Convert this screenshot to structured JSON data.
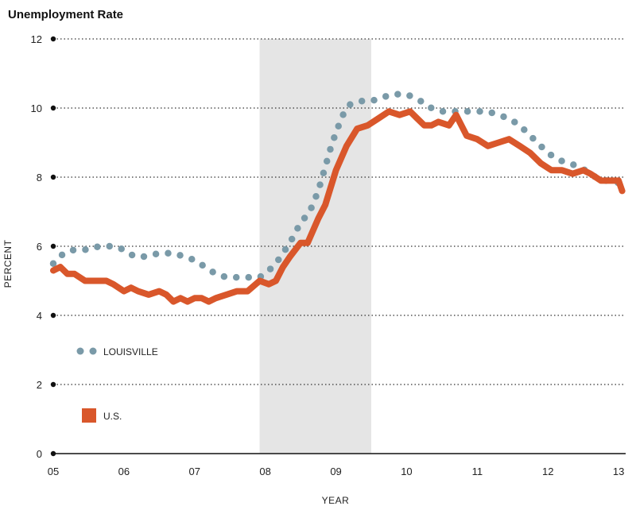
{
  "chart_data": {
    "type": "line",
    "title": "Unemployment Rate",
    "xlabel": "YEAR",
    "ylabel": "PERCENT",
    "ylim": [
      0,
      12
    ],
    "xlim": [
      2005,
      2013.1
    ],
    "yticks": [
      0,
      2,
      4,
      6,
      8,
      10,
      12
    ],
    "xticks": [
      {
        "value": 2005,
        "label": "05"
      },
      {
        "value": 2006,
        "label": "06"
      },
      {
        "value": 2007,
        "label": "07"
      },
      {
        "value": 2008,
        "label": "08"
      },
      {
        "value": 2009,
        "label": "09"
      },
      {
        "value": 2010,
        "label": "10"
      },
      {
        "value": 2011,
        "label": "11"
      },
      {
        "value": 2012,
        "label": "12"
      },
      {
        "value": 2013,
        "label": "13"
      }
    ],
    "grid": true,
    "recession_band": {
      "start": 2007.92,
      "end": 2009.5
    },
    "legend_position": "bottom-left",
    "series": [
      {
        "name": "LOUISVILLE",
        "style": "dotted",
        "color": "#7a9aa8",
        "x": [
          2005.0,
          2005.15,
          2005.3,
          2005.5,
          2005.65,
          2005.85,
          2006.0,
          2006.15,
          2006.3,
          2006.5,
          2006.7,
          2006.85,
          2007.0,
          2007.15,
          2007.3,
          2007.45,
          2007.6,
          2007.75,
          2007.92,
          2008.05,
          2008.15,
          2008.25,
          2008.35,
          2008.45,
          2008.55,
          2008.65,
          2008.75,
          2008.85,
          2008.92,
          2009.0,
          2009.1,
          2009.2,
          2009.35,
          2009.5,
          2009.65,
          2009.8,
          2010.0,
          2010.2,
          2010.35,
          2010.5,
          2010.7,
          2010.85,
          2011.0,
          2011.15,
          2011.3,
          2011.45,
          2011.6,
          2011.75,
          2011.9,
          2012.0,
          2012.15,
          2012.3,
          2012.45,
          2012.6,
          2012.75,
          2012.9,
          2013.05
        ],
        "y": [
          5.5,
          5.8,
          5.9,
          5.9,
          6.0,
          6.0,
          5.9,
          5.7,
          5.7,
          5.8,
          5.8,
          5.7,
          5.6,
          5.4,
          5.2,
          5.1,
          5.1,
          5.1,
          5.1,
          5.3,
          5.5,
          5.8,
          6.1,
          6.5,
          6.8,
          7.1,
          7.6,
          8.3,
          8.8,
          9.3,
          9.8,
          10.1,
          10.2,
          10.2,
          10.3,
          10.4,
          10.4,
          10.2,
          10.0,
          9.9,
          9.9,
          9.9,
          9.9,
          9.9,
          9.8,
          9.7,
          9.5,
          9.2,
          8.9,
          8.7,
          8.5,
          8.4,
          8.3,
          8.1,
          7.9,
          7.9,
          7.8
        ]
      },
      {
        "name": "U.S.",
        "style": "solid",
        "color": "#d9572b",
        "x": [
          2005.0,
          2005.1,
          2005.2,
          2005.3,
          2005.45,
          2005.6,
          2005.75,
          2005.85,
          2006.0,
          2006.1,
          2006.2,
          2006.35,
          2006.5,
          2006.6,
          2006.7,
          2006.8,
          2006.9,
          2007.0,
          2007.1,
          2007.2,
          2007.3,
          2007.45,
          2007.6,
          2007.75,
          2007.92,
          2008.05,
          2008.15,
          2008.25,
          2008.35,
          2008.5,
          2008.6,
          2008.75,
          2008.85,
          2009.0,
          2009.15,
          2009.3,
          2009.45,
          2009.6,
          2009.75,
          2009.9,
          2010.05,
          2010.15,
          2010.25,
          2010.35,
          2010.45,
          2010.6,
          2010.7,
          2010.85,
          2011.0,
          2011.15,
          2011.3,
          2011.45,
          2011.6,
          2011.75,
          2011.9,
          2012.05,
          2012.2,
          2012.35,
          2012.5,
          2012.6,
          2012.75,
          2012.85,
          2013.0,
          2013.05
        ],
        "y": [
          5.3,
          5.4,
          5.2,
          5.2,
          5.0,
          5.0,
          5.0,
          4.9,
          4.7,
          4.8,
          4.7,
          4.6,
          4.7,
          4.6,
          4.4,
          4.5,
          4.4,
          4.5,
          4.5,
          4.4,
          4.5,
          4.6,
          4.7,
          4.7,
          5.0,
          4.9,
          5.0,
          5.4,
          5.7,
          6.1,
          6.1,
          6.8,
          7.2,
          8.2,
          8.9,
          9.4,
          9.5,
          9.7,
          9.9,
          9.8,
          9.9,
          9.7,
          9.5,
          9.5,
          9.6,
          9.5,
          9.8,
          9.2,
          9.1,
          8.9,
          9.0,
          9.1,
          8.9,
          8.7,
          8.4,
          8.2,
          8.2,
          8.1,
          8.2,
          8.1,
          7.9,
          7.9,
          7.9,
          7.6
        ]
      }
    ]
  }
}
